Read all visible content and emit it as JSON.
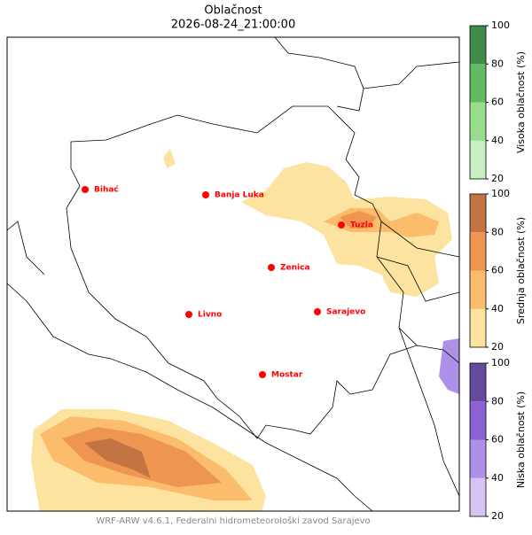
{
  "title": "Oblačnost",
  "subtitle": "2026-08-24_21:00:00",
  "cities": [
    "Bihać",
    "Banja Luka",
    "Tuzla",
    "Zenica",
    "Livno",
    "Sarajevo",
    "Mostar"
  ],
  "city_color": "#ff0000",
  "colorbars": [
    {
      "label": "Visoka oblačnost (%)",
      "ticks": [
        20,
        40,
        60,
        80,
        100
      ],
      "colors": [
        "#c6eec0",
        "#98dd8e",
        "#62bb62",
        "#3f8c4a"
      ]
    },
    {
      "label": "Srednja oblačnost (%)",
      "ticks": [
        20,
        40,
        60,
        80,
        100
      ],
      "colors": [
        "#fde3a0",
        "#fbbd6c",
        "#ef9552",
        "#c27443"
      ]
    },
    {
      "label": "Niska oblačnost (%)",
      "ticks": [
        20,
        40,
        60,
        80,
        100
      ],
      "colors": [
        "#d7c4f6",
        "#ae90e8",
        "#8a62d3",
        "#654b9e"
      ]
    }
  ],
  "footer": "WRF-ARW v4.6.1, Federalni hidrometeorološki zavod Sarajevo"
}
